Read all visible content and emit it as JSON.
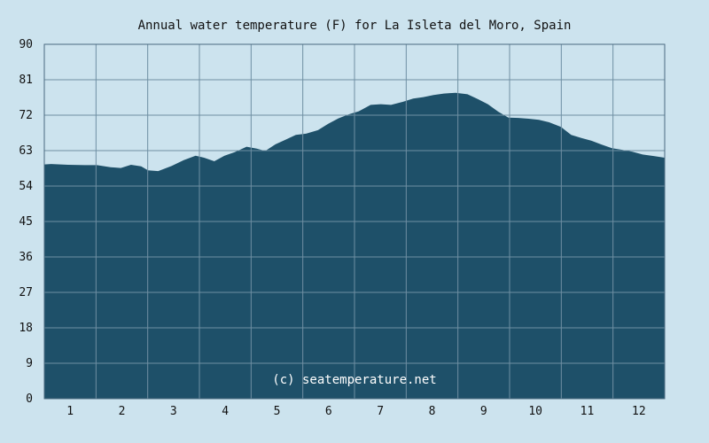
{
  "chart_data": {
    "type": "area",
    "title": "Annual water temperature (F) for La Isleta del Moro, Spain",
    "xlabel": "",
    "ylabel": "",
    "x_ticks": [
      "1",
      "2",
      "3",
      "4",
      "5",
      "6",
      "7",
      "8",
      "9",
      "10",
      "11",
      "12"
    ],
    "xlim": [
      1,
      366
    ],
    "ylim": [
      0,
      90
    ],
    "y_ticks": [
      "0",
      "9",
      "18",
      "27",
      "36",
      "45",
      "54",
      "63",
      "72",
      "81",
      "90"
    ],
    "grid": true,
    "legend": "none",
    "colors": {
      "background": "#cce3ee",
      "plot_background": "#cce3ee",
      "fill": "#1e5069",
      "grid": "#6f8fa3",
      "axis": "#4a6a80",
      "credit_text": "#ffffff"
    },
    "series": [
      {
        "day_of_year": [
          1,
          5,
          15,
          25,
          32,
          40,
          46,
          52,
          58,
          62,
          68,
          76,
          83,
          90,
          95,
          101,
          107,
          113,
          120,
          126,
          131,
          137,
          143,
          149,
          155,
          162,
          168,
          174,
          180,
          186,
          193,
          199,
          205,
          212,
          218,
          224,
          230,
          236,
          243,
          250,
          256,
          262,
          268,
          274,
          280,
          286,
          292,
          298,
          305,
          311,
          317,
          323,
          329,
          335,
          341,
          347,
          353,
          360,
          366
        ],
        "values": [
          59.5,
          59.6,
          59.4,
          59.3,
          59.3,
          58.8,
          58.6,
          59.4,
          59.0,
          58.0,
          57.8,
          59.1,
          60.6,
          61.7,
          61.2,
          60.3,
          61.7,
          62.6,
          64.0,
          63.5,
          62.9,
          64.6,
          65.8,
          67.0,
          67.3,
          68.2,
          69.8,
          71.2,
          72.2,
          73.0,
          74.6,
          74.8,
          74.6,
          75.4,
          76.2,
          76.6,
          77.1,
          77.5,
          77.7,
          77.3,
          76.1,
          74.8,
          72.9,
          71.4,
          71.3,
          71.1,
          70.8,
          70.2,
          69.0,
          67.0,
          66.2,
          65.5,
          64.5,
          63.6,
          63.2,
          62.7,
          62.0,
          61.6,
          61.2
        ]
      }
    ],
    "credit": "(c) seatemperature.net"
  }
}
